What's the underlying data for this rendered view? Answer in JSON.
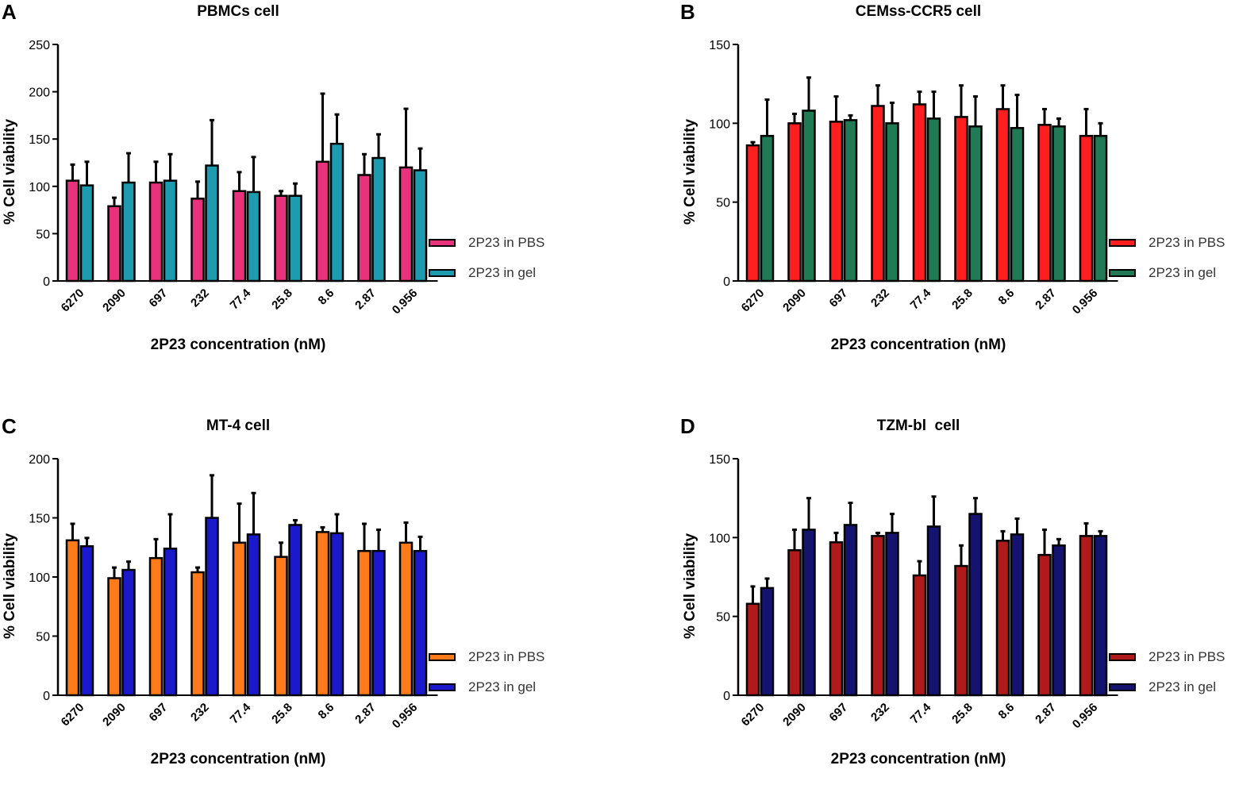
{
  "figure": {
    "xlabel": "2P23 concentration (nM)",
    "ylabel": "% Cell viability",
    "categories": [
      "6270",
      "2090",
      "697",
      "232",
      "77.4",
      "25.8",
      "8.6",
      "2.87",
      "0.956"
    ]
  },
  "chart_data": [
    {
      "panel": "A",
      "type": "bar",
      "title": "PBMCs cell",
      "xlabel": "2P23 concentration (nM)",
      "ylabel": "% Cell viability",
      "ylim": [
        0,
        250
      ],
      "yticks": [
        0,
        50,
        100,
        150,
        200,
        250
      ],
      "categories": [
        "6270",
        "2090",
        "697",
        "232",
        "77.4",
        "25.8",
        "8.6",
        "2.87",
        "0.956"
      ],
      "series": [
        {
          "name": "2P23 in PBS",
          "color": "#e8327c",
          "values": [
            106,
            79,
            104,
            87,
            95,
            90,
            126,
            112,
            120
          ],
          "errors": [
            17,
            9,
            22,
            18,
            20,
            5,
            72,
            22,
            62
          ]
        },
        {
          "name": "2P23 in gel",
          "color": "#1f9bb0",
          "values": [
            101,
            104,
            106,
            122,
            94,
            90,
            145,
            130,
            117
          ],
          "errors": [
            25,
            31,
            28,
            48,
            37,
            13,
            31,
            25,
            23
          ]
        }
      ]
    },
    {
      "panel": "B",
      "type": "bar",
      "title": "CEMss-CCR5 cell",
      "xlabel": "2P23 concentration (nM)",
      "ylabel": "% Cell viability",
      "ylim": [
        0,
        150
      ],
      "yticks": [
        0,
        50,
        100,
        150
      ],
      "categories": [
        "6270",
        "2090",
        "697",
        "232",
        "77.4",
        "25.8",
        "8.6",
        "2.87",
        "0.956"
      ],
      "series": [
        {
          "name": "2P23 in PBS",
          "color": "#ff1f1f",
          "values": [
            86,
            100,
            101,
            111,
            112,
            104,
            109,
            99,
            92
          ],
          "errors": [
            2,
            6,
            16,
            13,
            8,
            20,
            15,
            10,
            17
          ]
        },
        {
          "name": "2P23 in gel",
          "color": "#1f7a55",
          "values": [
            92,
            108,
            102,
            100,
            103,
            98,
            97,
            98,
            92
          ],
          "errors": [
            23,
            21,
            3,
            13,
            17,
            19,
            21,
            5,
            8
          ]
        }
      ]
    },
    {
      "panel": "C",
      "type": "bar",
      "title": "MT-4 cell",
      "xlabel": "2P23 concentration (nM)",
      "ylabel": "% Cell viability",
      "ylim": [
        0,
        200
      ],
      "yticks": [
        0,
        50,
        100,
        150,
        200
      ],
      "categories": [
        "6270",
        "2090",
        "697",
        "232",
        "77.4",
        "25.8",
        "8.6",
        "2.87",
        "0.956"
      ],
      "series": [
        {
          "name": "2P23 in PBS",
          "color": "#ff7a1a",
          "values": [
            131,
            99,
            116,
            104,
            129,
            117,
            138,
            122,
            129
          ],
          "errors": [
            14,
            9,
            16,
            4,
            33,
            12,
            4,
            23,
            17
          ]
        },
        {
          "name": "2P23 in gel",
          "color": "#1a1acc",
          "values": [
            126,
            106,
            124,
            150,
            136,
            144,
            137,
            122,
            122
          ],
          "errors": [
            7,
            7,
            29,
            36,
            35,
            4,
            16,
            18,
            12
          ]
        }
      ]
    },
    {
      "panel": "D",
      "type": "bar",
      "title": "TZM-bl  cell",
      "xlabel": "2P23 concentration (nM)",
      "ylabel": "% Cell viability",
      "ylim": [
        0,
        150
      ],
      "yticks": [
        0,
        50,
        100,
        150
      ],
      "categories": [
        "6270",
        "2090",
        "697",
        "232",
        "77.4",
        "25.8",
        "8.6",
        "2.87",
        "0.956"
      ],
      "series": [
        {
          "name": "2P23 in PBS",
          "color": "#b01a1a",
          "values": [
            58,
            92,
            97,
            101,
            76,
            82,
            98,
            89,
            101
          ],
          "errors": [
            11,
            13,
            6,
            2,
            9,
            13,
            6,
            16,
            8
          ]
        },
        {
          "name": "2P23 in gel",
          "color": "#141470",
          "values": [
            68,
            105,
            108,
            103,
            107,
            115,
            102,
            95,
            101
          ],
          "errors": [
            6,
            20,
            14,
            12,
            19,
            10,
            10,
            4,
            3
          ]
        }
      ]
    }
  ]
}
